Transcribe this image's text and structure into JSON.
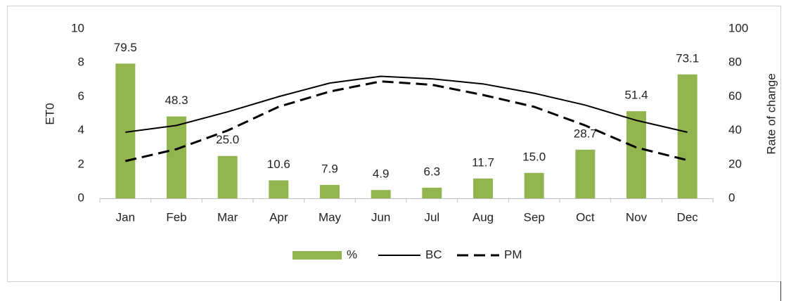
{
  "chart_data": {
    "type": "bar-line",
    "categories": [
      "Jan",
      "Feb",
      "Mar",
      "Apr",
      "May",
      "Jun",
      "Jul",
      "Aug",
      "Sep",
      "Oct",
      "Nov",
      "Dec"
    ],
    "y_label": "ET0",
    "y2_label": "Rate of change",
    "ylim": [
      0,
      10
    ],
    "yticks": [
      0,
      2,
      4,
      6,
      8,
      10
    ],
    "y2lim": [
      0,
      100
    ],
    "y2ticks": [
      0,
      20,
      40,
      60,
      80,
      100
    ],
    "legend": "bottom",
    "series": [
      {
        "name": "%",
        "kind": "bar",
        "axis": "y2",
        "color": "#92b550",
        "values": [
          79.5,
          48.3,
          25,
          10.6,
          7.9,
          4.9,
          6.3,
          11.7,
          15,
          28.7,
          51.4,
          73.1
        ],
        "value_labels": [
          "79.5",
          "48.3",
          "25.0",
          "10.6",
          "7.9",
          "4.9",
          "6.3",
          "11.7",
          "15.0",
          "28.7",
          "51.4",
          "73.1"
        ]
      },
      {
        "name": "BC",
        "kind": "line",
        "color": "#000000",
        "dash": "solid",
        "values": [
          3.9,
          4.3,
          5.1,
          6.0,
          6.8,
          7.2,
          7.05,
          6.75,
          6.2,
          5.5,
          4.6,
          3.9
        ]
      },
      {
        "name": "PM",
        "kind": "line",
        "color": "#000000",
        "dash": "dashed",
        "values": [
          2.2,
          2.9,
          4.0,
          5.4,
          6.3,
          6.9,
          6.7,
          6.1,
          5.4,
          4.3,
          3.0,
          2.25
        ]
      }
    ]
  }
}
